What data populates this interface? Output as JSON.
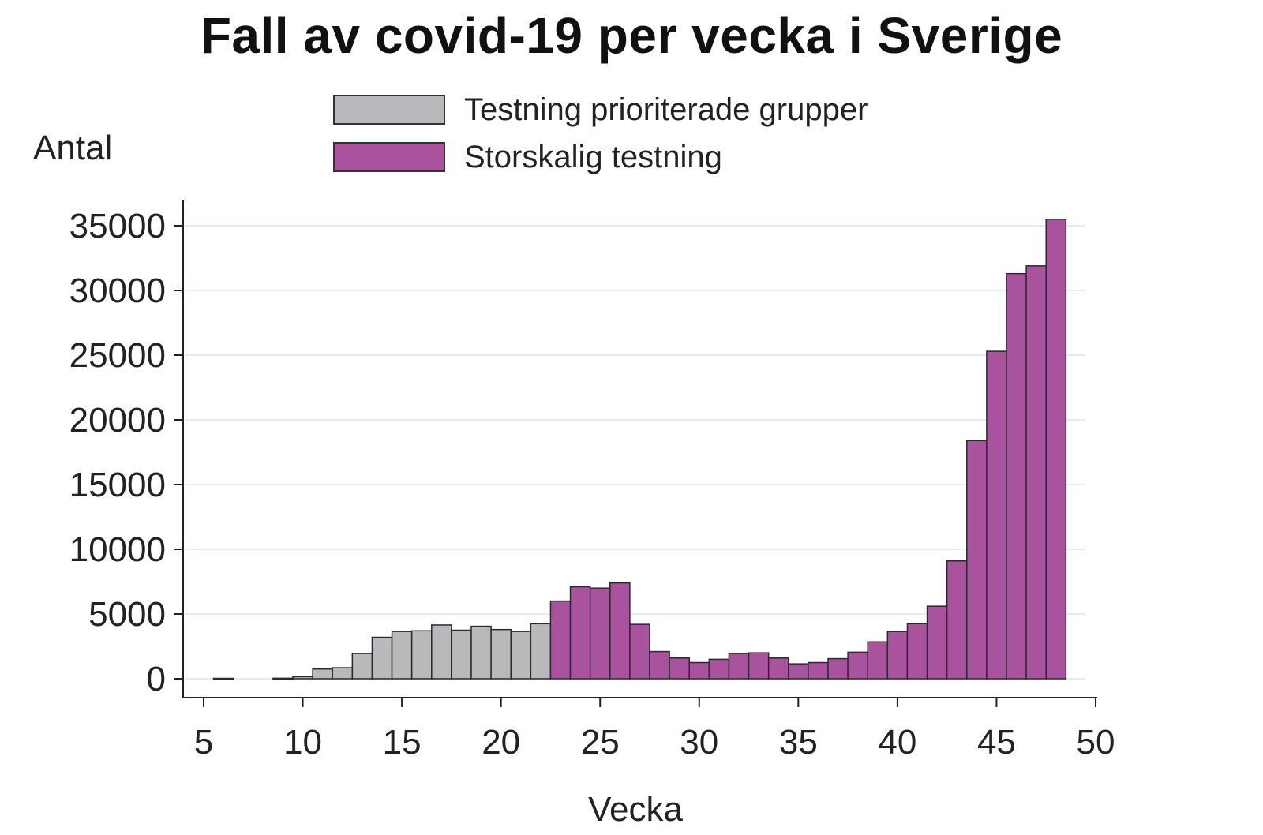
{
  "chart_data": {
    "type": "bar",
    "title": "Fall av covid-19 per vecka i Sverige",
    "ylabel": "Antal",
    "xlabel": "Vecka",
    "xlim": [
      5,
      50
    ],
    "ylim": [
      0,
      35000
    ],
    "xticks": [
      "5",
      "10",
      "15",
      "20",
      "25",
      "30",
      "35",
      "40",
      "45",
      "50"
    ],
    "yticks": [
      "0",
      "5000",
      "10000",
      "15000",
      "20000",
      "25000",
      "30000",
      "35000"
    ],
    "grid": true,
    "legend_position": "top",
    "series": [
      {
        "name": "Testning prioriterade grupper",
        "color": "#b9b9bc",
        "weeks": [
          6,
          9,
          10,
          11,
          12,
          13,
          14,
          15,
          16,
          17,
          18,
          19,
          20,
          21,
          22
        ],
        "values": [
          30,
          40,
          160,
          750,
          850,
          1950,
          3200,
          3650,
          3700,
          4150,
          3750,
          4050,
          3800,
          3650,
          4250
        ]
      },
      {
        "name": "Storskalig testning",
        "color": "#a9539f",
        "weeks": [
          23,
          24,
          25,
          26,
          27,
          28,
          29,
          30,
          31,
          32,
          33,
          34,
          35,
          36,
          37,
          38,
          39,
          40,
          41,
          42,
          43,
          44,
          45,
          46,
          47,
          48
        ],
        "values": [
          6000,
          7100,
          7000,
          7400,
          4200,
          2100,
          1600,
          1250,
          1500,
          1950,
          2000,
          1600,
          1150,
          1250,
          1550,
          2050,
          2850,
          3650,
          4250,
          5600,
          9100,
          18400,
          25300,
          31300,
          31900,
          35500
        ]
      }
    ]
  }
}
